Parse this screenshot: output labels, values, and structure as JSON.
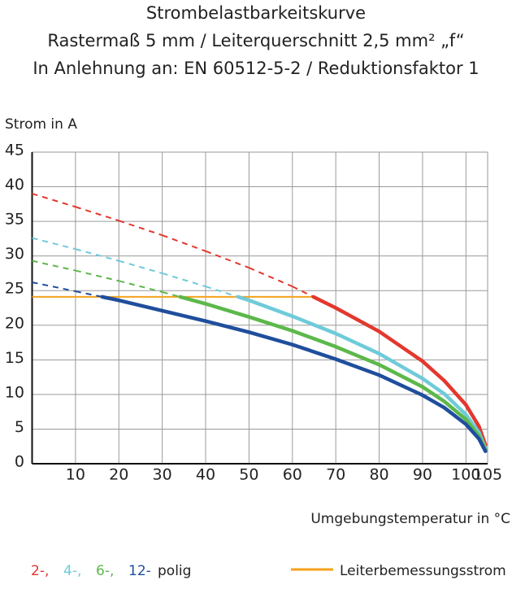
{
  "chart_data": {
    "type": "line",
    "title": [
      "Strombelastbarkeitskurve",
      "Rastermaß 5 mm / Leiterquerschnitt 2,5 mm² „f“",
      "In Anlehnung an: EN 60512-5-2 / Reduktionsfaktor 1"
    ],
    "y_label": "Strom in A",
    "x_label": "Umgebungstemperatur in °C",
    "xlim": [
      0,
      105
    ],
    "ylim": [
      0,
      45
    ],
    "xticks": [
      10,
      20,
      30,
      40,
      50,
      60,
      70,
      80,
      90,
      100,
      105
    ],
    "yticks": [
      0,
      5,
      10,
      15,
      20,
      25,
      30,
      35,
      40,
      45
    ],
    "grid": true,
    "x": [
      0,
      10,
      20,
      30,
      40,
      50,
      60,
      70,
      80,
      90,
      95,
      100,
      103,
      104.5
    ],
    "series": [
      {
        "name": "2-,",
        "color": "#e2382e",
        "values": [
          39.0,
          37.1,
          35.1,
          33.0,
          30.7,
          28.3,
          25.6,
          22.5,
          19.1,
          14.8,
          12.0,
          8.5,
          5.4,
          2.7
        ]
      },
      {
        "name": "4-,",
        "color": "#6fcbd9",
        "values": [
          32.6,
          31.0,
          29.3,
          27.5,
          25.6,
          23.6,
          21.3,
          18.8,
          15.9,
          12.3,
          10.1,
          7.1,
          4.5,
          2.2
        ]
      },
      {
        "name": "6-,",
        "color": "#5cb84a",
        "values": [
          29.3,
          27.9,
          26.4,
          24.8,
          23.1,
          21.2,
          19.2,
          16.9,
          14.3,
          11.1,
          9.0,
          6.4,
          4.0,
          2.0
        ]
      },
      {
        "name": "12-",
        "color": "#1f4e9c",
        "values": [
          26.2,
          24.9,
          23.6,
          22.1,
          20.6,
          19.0,
          17.2,
          15.1,
          12.8,
          9.9,
          8.1,
          5.7,
          3.6,
          1.8
        ]
      }
    ],
    "legend_suffix": "polig",
    "rated_current": {
      "name": "Leiterbemessungsstrom",
      "color": "#f5a21c",
      "value": 24.1,
      "x": [
        0,
        65
      ]
    }
  }
}
